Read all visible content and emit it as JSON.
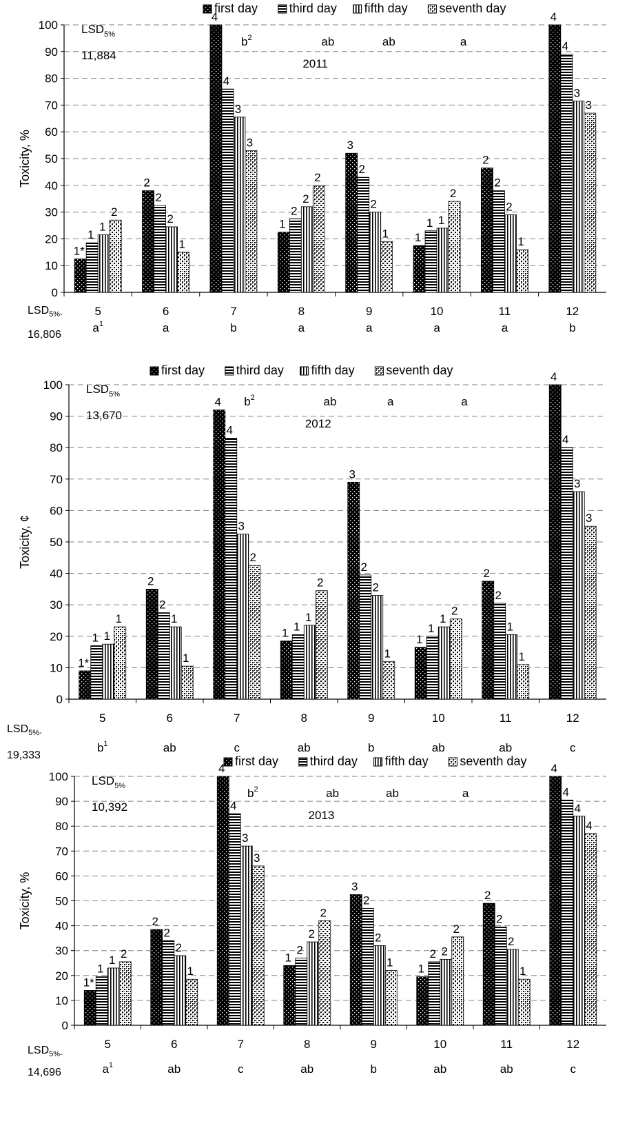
{
  "chart_data": [
    {
      "type": "bar",
      "year_label": "2011",
      "ylabel": "Toxicity, %",
      "ylim": [
        0,
        100
      ],
      "yticks": [
        "0",
        "10",
        "20",
        "30",
        "40",
        "50",
        "60",
        "70",
        "80",
        "90",
        "100"
      ],
      "categories": [
        "5",
        "6",
        "7",
        "8",
        "9",
        "10",
        "11",
        "12"
      ],
      "legend": [
        "first day",
        "third day",
        "fifth day",
        "seventh day"
      ],
      "legend_placement": "top",
      "series": [
        {
          "name": "first day",
          "values": [
            12.5,
            38,
            100,
            22.5,
            52,
            17.5,
            46.5,
            100
          ]
        },
        {
          "name": "third day",
          "values": [
            18.5,
            32.5,
            76,
            27.5,
            43,
            23,
            38,
            89
          ]
        },
        {
          "name": "fifth day",
          "values": [
            21.5,
            24.5,
            65.5,
            32,
            30,
            24,
            29,
            71.5
          ]
        },
        {
          "name": "seventh day",
          "values": [
            27,
            15,
            53,
            40,
            19,
            34,
            16,
            67
          ]
        }
      ],
      "bar_labels": [
        [
          "1*",
          "1",
          "1",
          "2"
        ],
        [
          "2",
          "2",
          "2",
          "1"
        ],
        [
          "4",
          "4",
          "3",
          "3"
        ],
        [
          "1",
          "2",
          "2",
          "2"
        ],
        [
          "3",
          "2",
          "2",
          "1"
        ],
        [
          "1",
          "1",
          "1",
          "2"
        ],
        [
          "2",
          "2",
          "2",
          "1"
        ],
        [
          "4",
          "4",
          "3",
          "3"
        ]
      ],
      "lsd_inner": {
        "label": "LSD",
        "sub": "5%",
        "value": "11,884"
      },
      "lsd_outer": {
        "label": "LSD",
        "sub": "5%-",
        "value": "16,806"
      },
      "top_letters": [
        {
          "text": "b",
          "sup": "2"
        },
        {
          "text": "ab",
          "sup": ""
        },
        {
          "text": "ab",
          "sup": ""
        },
        {
          "text": "a",
          "sup": ""
        }
      ],
      "bottom_letters": [
        {
          "text": "a",
          "sup": "1"
        },
        {
          "text": "a",
          "sup": ""
        },
        {
          "text": "b",
          "sup": ""
        },
        {
          "text": "a",
          "sup": ""
        },
        {
          "text": "a",
          "sup": ""
        },
        {
          "text": "a",
          "sup": ""
        },
        {
          "text": "a",
          "sup": ""
        },
        {
          "text": "b",
          "sup": ""
        }
      ]
    },
    {
      "type": "bar",
      "year_label": "2012",
      "ylabel": "Toxicity, ¢",
      "ylim": [
        0,
        100
      ],
      "yticks": [
        "0",
        "10",
        "20",
        "30",
        "40",
        "50",
        "60",
        "70",
        "80",
        "90",
        "100"
      ],
      "categories": [
        "5",
        "6",
        "7",
        "8",
        "9",
        "10",
        "11",
        "12"
      ],
      "legend": [
        "first day",
        "third day",
        "fifth day",
        "seventh day"
      ],
      "legend_placement": "top",
      "series": [
        {
          "name": "first day",
          "values": [
            9,
            35,
            92,
            18.5,
            69,
            16.5,
            37.5,
            100
          ]
        },
        {
          "name": "third day",
          "values": [
            17,
            27.5,
            83,
            20.5,
            39.5,
            20,
            30.5,
            80
          ]
        },
        {
          "name": "fifth day",
          "values": [
            17.5,
            23,
            52.5,
            23.5,
            33,
            23,
            20.5,
            66
          ]
        },
        {
          "name": "seventh day",
          "values": [
            23,
            10.5,
            42.5,
            34.5,
            12,
            25.5,
            11,
            55
          ]
        }
      ],
      "bar_labels": [
        [
          "1*",
          "1",
          "1",
          "1"
        ],
        [
          "2",
          "2",
          "1",
          "1"
        ],
        [
          "4",
          "4",
          "3",
          "2"
        ],
        [
          "1",
          "1",
          "1",
          "2"
        ],
        [
          "3",
          "2",
          "2",
          "1"
        ],
        [
          "1",
          "1",
          "1",
          "2"
        ],
        [
          "2",
          "2",
          "1",
          "1"
        ],
        [
          "4",
          "4",
          "3",
          "3"
        ]
      ],
      "lsd_inner": {
        "label": "LSD",
        "sub": "5%",
        "value": "13,670"
      },
      "lsd_outer": {
        "label": "LSD",
        "sub": "5%-",
        "value": "19,333"
      },
      "top_letters": [
        {
          "text": "b",
          "sup": "2"
        },
        {
          "text": "ab",
          "sup": ""
        },
        {
          "text": "a",
          "sup": ""
        },
        {
          "text": "a",
          "sup": ""
        }
      ],
      "bottom_letters": [
        {
          "text": "b",
          "sup": "1"
        },
        {
          "text": "ab",
          "sup": ""
        },
        {
          "text": "c",
          "sup": ""
        },
        {
          "text": "ab",
          "sup": ""
        },
        {
          "text": "b",
          "sup": ""
        },
        {
          "text": "ab",
          "sup": ""
        },
        {
          "text": "ab",
          "sup": ""
        },
        {
          "text": "c",
          "sup": ""
        }
      ]
    },
    {
      "type": "bar",
      "year_label": "2013",
      "ylabel": "Toxicity, %",
      "ylim": [
        0,
        100
      ],
      "yticks": [
        "0",
        "10",
        "20",
        "30",
        "40",
        "50",
        "60",
        "70",
        "80",
        "90",
        "100"
      ],
      "categories": [
        "5",
        "6",
        "7",
        "8",
        "9",
        "10",
        "11",
        "12"
      ],
      "legend": [
        "first day",
        "third day",
        "fifth day",
        "seventh day"
      ],
      "legend_placement": "top",
      "series": [
        {
          "name": "first day",
          "values": [
            14,
            38.5,
            100,
            24,
            52.5,
            19.5,
            49,
            100
          ]
        },
        {
          "name": "third day",
          "values": [
            19.5,
            34,
            85,
            27,
            47,
            25.5,
            39.5,
            90.5
          ]
        },
        {
          "name": "fifth day",
          "values": [
            23,
            28,
            72,
            33.5,
            32,
            26.5,
            30.5,
            84
          ]
        },
        {
          "name": "seventh day",
          "values": [
            25.5,
            18.5,
            64,
            42,
            22,
            35.5,
            18.5,
            77
          ]
        }
      ],
      "bar_labels": [
        [
          "1*",
          "1",
          "1",
          "2"
        ],
        [
          "2",
          "2",
          "2",
          "1"
        ],
        [
          "4",
          "4",
          "3",
          "3"
        ],
        [
          "1",
          "2",
          "2",
          "2"
        ],
        [
          "3",
          "2",
          "2",
          "1"
        ],
        [
          "1",
          "2",
          "2",
          "2"
        ],
        [
          "2",
          "2",
          "2",
          "1"
        ],
        [
          "4",
          "4",
          "4",
          "4"
        ]
      ],
      "lsd_inner": {
        "label": "LSD",
        "sub": "5%",
        "value": "10,392"
      },
      "lsd_outer": {
        "label": "LSD",
        "sub": "5%-",
        "value": "14,696"
      },
      "top_letters": [
        {
          "text": "b",
          "sup": "2"
        },
        {
          "text": "ab",
          "sup": ""
        },
        {
          "text": "ab",
          "sup": ""
        },
        {
          "text": "a",
          "sup": ""
        }
      ],
      "bottom_letters": [
        {
          "text": "a",
          "sup": "1"
        },
        {
          "text": "ab",
          "sup": ""
        },
        {
          "text": "c",
          "sup": ""
        },
        {
          "text": "ab",
          "sup": ""
        },
        {
          "text": "b",
          "sup": ""
        },
        {
          "text": "ab",
          "sup": ""
        },
        {
          "text": "ab",
          "sup": ""
        },
        {
          "text": "c",
          "sup": ""
        }
      ]
    }
  ]
}
